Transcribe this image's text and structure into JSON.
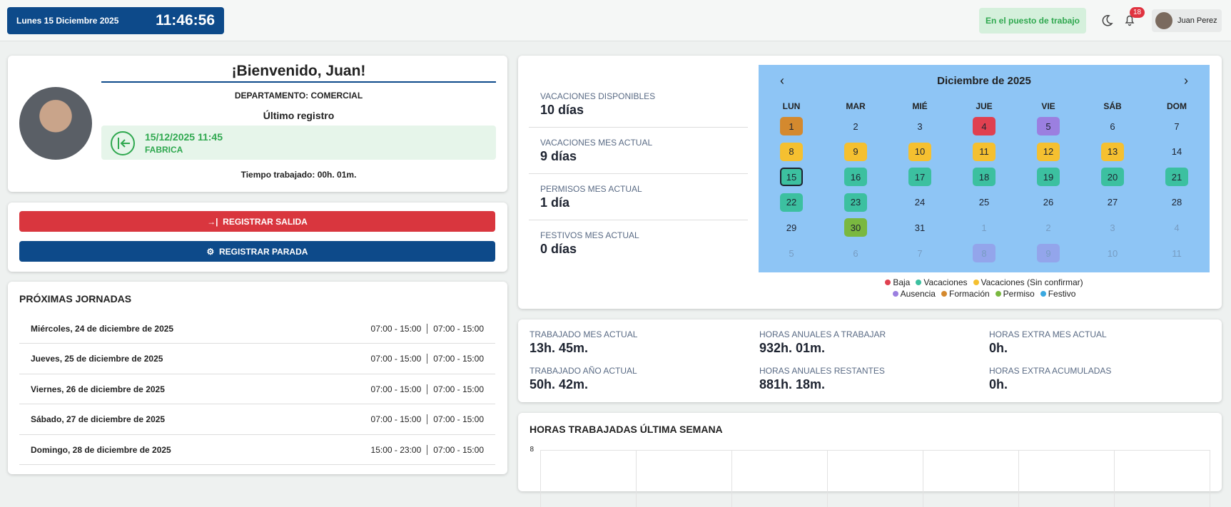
{
  "header": {
    "date": "Lunes 15 Diciembre 2025",
    "time": "11:46:56",
    "status": "En el puesto de trabajo",
    "notifications": "18",
    "user": "Juan Perez"
  },
  "welcome": {
    "title": "¡Bienvenido, Juan!",
    "department": "DEPARTAMENTO: COMERCIAL",
    "last_label": "Último registro",
    "last_time": "15/12/2025 11:45",
    "last_place": "FABRICA",
    "worked": "Tiempo trabajado: 00h. 01m."
  },
  "actions": [
    "REGISTRAR SALIDA",
    "REGISTRAR PARADA"
  ],
  "upcoming": {
    "title": "PRÓXIMAS JORNADAS",
    "rows": [
      {
        "day": "Miércoles, 24 de diciembre de 2025",
        "shift1": "07:00 - 15:00",
        "shift2": "07:00 - 15:00"
      },
      {
        "day": "Jueves, 25 de diciembre de 2025",
        "shift1": "07:00 - 15:00",
        "shift2": "07:00 - 15:00"
      },
      {
        "day": "Viernes, 26 de diciembre de 2025",
        "shift1": "07:00 - 15:00",
        "shift2": "07:00 - 15:00"
      },
      {
        "day": "Sábado, 27 de diciembre de 2025",
        "shift1": "07:00 - 15:00",
        "shift2": "07:00 - 15:00"
      },
      {
        "day": "Domingo, 28 de diciembre de 2025",
        "shift1": "15:00 - 23:00",
        "shift2": "07:00 - 15:00"
      }
    ]
  },
  "balances": [
    {
      "label": "VACACIONES DISPONIBLES",
      "value": "10 días"
    },
    {
      "label": "VACACIONES MES ACTUAL",
      "value": "9 días"
    },
    {
      "label": "PERMISOS MES ACTUAL",
      "value": "1 día"
    },
    {
      "label": "FESTIVOS MES ACTUAL",
      "value": "0 días"
    }
  ],
  "calendar": {
    "title": "Diciembre de 2025",
    "weekdays": [
      "LUN",
      "MAR",
      "MIÉ",
      "JUE",
      "VIE",
      "SÁB",
      "DOM"
    ],
    "days": [
      {
        "label": "1",
        "color": "#d4892e"
      },
      {
        "label": "2"
      },
      {
        "label": "3"
      },
      {
        "label": "4",
        "color": "#e04050"
      },
      {
        "label": "5",
        "color": "#9b7fe0"
      },
      {
        "label": "6"
      },
      {
        "label": "7"
      },
      {
        "label": "8",
        "color": "#f5c030"
      },
      {
        "label": "9",
        "color": "#f5c030"
      },
      {
        "label": "10",
        "color": "#f5c030"
      },
      {
        "label": "11",
        "color": "#f5c030"
      },
      {
        "label": "12",
        "color": "#f5c030"
      },
      {
        "label": "13",
        "color": "#f5c030"
      },
      {
        "label": "14"
      },
      {
        "label": "15",
        "color": "#3cc0a0",
        "outlined": true
      },
      {
        "label": "16",
        "color": "#3cc0a0"
      },
      {
        "label": "17",
        "color": "#3cc0a0"
      },
      {
        "label": "18",
        "color": "#3cc0a0"
      },
      {
        "label": "19",
        "color": "#3cc0a0"
      },
      {
        "label": "20",
        "color": "#3cc0a0"
      },
      {
        "label": "21",
        "color": "#3cc0a0"
      },
      {
        "label": "22",
        "color": "#3cc0a0"
      },
      {
        "label": "23",
        "color": "#3cc0a0"
      },
      {
        "label": "24"
      },
      {
        "label": "25"
      },
      {
        "label": "26"
      },
      {
        "label": "27"
      },
      {
        "label": "28"
      },
      {
        "label": "29"
      },
      {
        "label": "30",
        "color": "#7ab840"
      },
      {
        "label": "31"
      }
    ],
    "next_month_days": [
      {
        "label": "1"
      },
      {
        "label": "2"
      },
      {
        "label": "3"
      },
      {
        "label": "4"
      },
      {
        "label": "5"
      },
      {
        "label": "6"
      },
      {
        "label": "7"
      },
      {
        "label": "8",
        "color": "#9b7fe0"
      },
      {
        "label": "9",
        "color": "#9b7fe0"
      },
      {
        "label": "10"
      },
      {
        "label": "11"
      }
    ],
    "legend": [
      {
        "name": "Baja",
        "color": "#e04050"
      },
      {
        "name": "Vacaciones",
        "color": "#3cc0a0"
      },
      {
        "name": "Vacaciones (Sin confirmar)",
        "color": "#f5c030"
      },
      {
        "name": "Ausencia",
        "color": "#9b7fe0"
      },
      {
        "name": "Formación",
        "color": "#d4892e"
      },
      {
        "name": "Permiso",
        "color": "#7ab840"
      },
      {
        "name": "Festivo",
        "color": "#3aa8e0"
      }
    ]
  },
  "stats": [
    {
      "label": "TRABAJADO MES ACTUAL",
      "value": "13h. 45m."
    },
    {
      "label": "TRABAJADO AÑO ACTUAL",
      "value": "50h. 42m."
    },
    {
      "label": "HORAS ANUALES A TRABAJAR",
      "value": "932h. 01m."
    },
    {
      "label": "HORAS ANUALES RESTANTES",
      "value": "881h. 18m."
    },
    {
      "label": "HORAS EXTRA MES ACTUAL",
      "value": "0h."
    },
    {
      "label": "HORAS EXTRA ACUMULADAS",
      "value": "0h."
    }
  ],
  "chart": {
    "title": "HORAS TRABAJADAS ÚLTIMA SEMANA",
    "ylim": [
      0,
      8
    ],
    "yticks": [
      8
    ]
  }
}
